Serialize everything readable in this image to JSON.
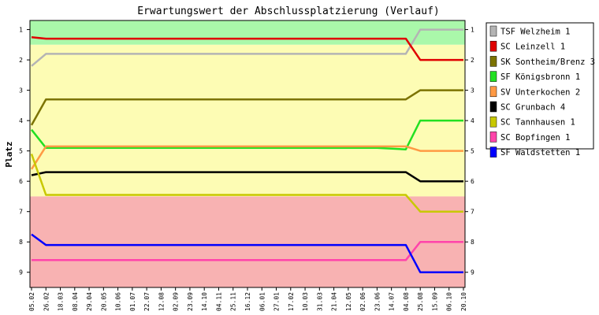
{
  "chart_data": {
    "type": "line",
    "title": "Erwartungswert der Abschlussplatzierung (Verlauf)",
    "xlabel": "",
    "ylabel": "Platz",
    "ylim": [
      0.7,
      9.5
    ],
    "y_inverted": true,
    "y_ticks": [
      "1",
      "2",
      "3",
      "4",
      "5",
      "6",
      "7",
      "8",
      "9"
    ],
    "x_tick_labels": [
      "05.02",
      "26.02",
      "18.03",
      "08.04",
      "29.04",
      "20.05",
      "10.06",
      "01.07",
      "22.07",
      "12.08",
      "02.09",
      "23.09",
      "14.10",
      "04.11",
      "25.11",
      "16.12",
      "06.01",
      "27.01",
      "17.02",
      "10.03",
      "31.03",
      "21.04",
      "12.05",
      "02.06",
      "23.06",
      "14.07",
      "04.08",
      "25.08",
      "15.09",
      "06.10",
      "20.10"
    ],
    "bands": [
      {
        "from": 0.7,
        "to": 1.5,
        "color": "#aaf8aa"
      },
      {
        "from": 1.5,
        "to": 6.5,
        "color": "#fdfcb4"
      },
      {
        "from": 6.5,
        "to": 9.5,
        "color": "#f8b2b2"
      }
    ],
    "grid": false,
    "legend_position": "right",
    "series": [
      {
        "name": "TSF Welzheim 1",
        "color": "#b4b4b4",
        "points": [
          [
            0,
            2.2
          ],
          [
            1,
            1.8
          ],
          [
            26,
            1.8
          ],
          [
            27,
            1.0
          ],
          [
            30,
            1.0
          ]
        ]
      },
      {
        "name": "SC Leinzell 1",
        "color": "#e00000",
        "points": [
          [
            0,
            1.25
          ],
          [
            1,
            1.3
          ],
          [
            26,
            1.3
          ],
          [
            27,
            2.0
          ],
          [
            30,
            2.0
          ]
        ]
      },
      {
        "name": "SK Sontheim/Brenz 3",
        "color": "#7c7300",
        "points": [
          [
            0,
            4.15
          ],
          [
            1,
            3.3
          ],
          [
            26,
            3.3
          ],
          [
            27,
            3.0
          ],
          [
            30,
            3.0
          ]
        ]
      },
      {
        "name": "SF Königsbronn 1",
        "color": "#22e022",
        "points": [
          [
            0,
            4.3
          ],
          [
            1,
            4.9
          ],
          [
            24,
            4.9
          ],
          [
            26,
            4.95
          ],
          [
            27,
            4.0
          ],
          [
            30,
            4.0
          ]
        ]
      },
      {
        "name": "SV Unterkochen 2",
        "color": "#ff9a44",
        "points": [
          [
            0,
            5.6
          ],
          [
            1,
            4.85
          ],
          [
            26,
            4.85
          ],
          [
            27,
            5.0
          ],
          [
            30,
            5.0
          ]
        ]
      },
      {
        "name": "SC Grunbach 4",
        "color": "#000000",
        "points": [
          [
            0,
            5.8
          ],
          [
            1,
            5.7
          ],
          [
            26,
            5.7
          ],
          [
            27,
            6.0
          ],
          [
            30,
            6.0
          ]
        ]
      },
      {
        "name": "SC Tannhausen 1",
        "color": "#c8c800",
        "points": [
          [
            0,
            5.1
          ],
          [
            1,
            6.45
          ],
          [
            26,
            6.45
          ],
          [
            27,
            7.0
          ],
          [
            30,
            7.0
          ]
        ]
      },
      {
        "name": "SC Bopfingen 1",
        "color": "#ff44aa",
        "points": [
          [
            0,
            8.6
          ],
          [
            26,
            8.6
          ],
          [
            27,
            8.0
          ],
          [
            30,
            8.0
          ]
        ]
      },
      {
        "name": "SF Waldstetten 1",
        "color": "#0000ff",
        "points": [
          [
            0,
            7.75
          ],
          [
            1,
            8.1
          ],
          [
            26,
            8.1
          ],
          [
            27,
            9.0
          ],
          [
            30,
            9.0
          ]
        ]
      }
    ]
  }
}
